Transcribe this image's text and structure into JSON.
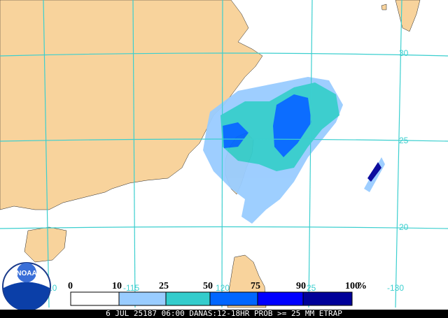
{
  "map": {
    "lat_labels": [
      "30",
      "25",
      "20"
    ],
    "lon_labels": [
      "10",
      "-115",
      "120",
      "25",
      "-130"
    ],
    "legend": {
      "labels": [
        "0",
        "10",
        "25",
        "50",
        "75",
        "90",
        "100"
      ],
      "unit": "%",
      "colors": [
        "#ffffff",
        "#99ccff",
        "#33cccc",
        "#0066ff",
        "#0000ff",
        "#000099"
      ]
    },
    "caption": "6 JUL 25187 06:00 DANAS:12-18HR PROB >= 25 MM ETRAP",
    "logo": "NOAA"
  }
}
